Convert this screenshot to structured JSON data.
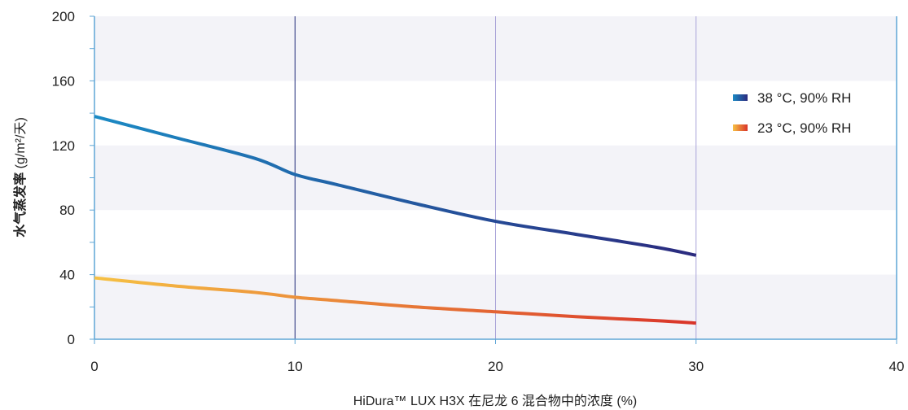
{
  "chart_data": {
    "type": "line",
    "xlabel": "HiDura™ LUX H3X 在尼龙 6 混合物中的浓度 (%)",
    "ylabel_bold": "水气蒸发率",
    "ylabel_unit": " (g/m²/天)",
    "xlim": [
      0,
      40
    ],
    "ylim": [
      0,
      200
    ],
    "x_ticks": [
      0,
      10,
      20,
      30,
      40
    ],
    "y_ticks": [
      0,
      40,
      80,
      120,
      160,
      200
    ],
    "grid": "alternating horizontal bands, vertical lines at x=10, 20, 30",
    "legend_position": "right",
    "series": [
      {
        "name": "38 °C, 90% RH",
        "color_start": "#1b8ac4",
        "color_end": "#2b2a7e",
        "x": [
          0,
          4,
          8,
          10,
          12,
          16,
          20,
          24,
          28,
          30
        ],
        "y": [
          138,
          125,
          112,
          102,
          96,
          84,
          73,
          65,
          57,
          52
        ]
      },
      {
        "name": "23 °C, 90% RH",
        "color_start": "#f6c144",
        "color_end": "#d9342a",
        "x": [
          0,
          4,
          8,
          10,
          12,
          16,
          20,
          24,
          28,
          30
        ],
        "y": [
          38,
          33,
          29,
          26,
          24,
          20,
          17,
          14,
          11.5,
          10
        ]
      }
    ],
    "vertical_lines": [
      {
        "x": 10,
        "color": "#1f2a78"
      },
      {
        "x": 20,
        "color": "#a9a3d8"
      },
      {
        "x": 30,
        "color": "#a9a3d8"
      }
    ],
    "colors": {
      "axis": "#5fa6d6",
      "band": "#f3f3f8"
    }
  }
}
